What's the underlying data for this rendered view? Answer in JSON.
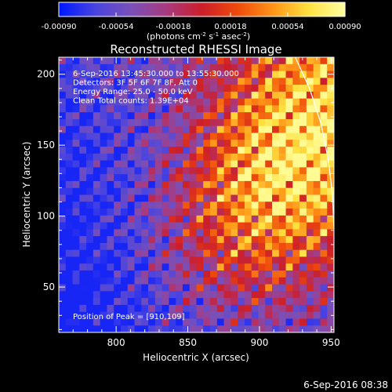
{
  "chart_data": {
    "type": "heatmap",
    "title": "Reconstructed RHESSI Image",
    "colorbar": {
      "ticks": [
        "-0.00090",
        "-0.00054",
        "-0.00018",
        "0.00018",
        "0.00054",
        "0.00090"
      ],
      "range": [
        -0.0009,
        0.0009
      ],
      "unit_parts": [
        "(photons cm",
        "-2",
        " s",
        "-1",
        " asec",
        "-2",
        ")"
      ]
    },
    "xlabel": "Heliocentric X (arcsec)",
    "ylabel": "Heliocentric Y (arcsec)",
    "xlim": [
      760,
      952
    ],
    "ylim": [
      18,
      212
    ],
    "xticks": [
      800,
      850,
      900,
      950
    ],
    "yticks": [
      50,
      100,
      150,
      200
    ],
    "annotations": [
      "6-Sep-2016 13:45:30.000 to 13:55:30.000",
      "Detectors: 3F 5F 6F 7F 8F, Att 0",
      "Energy Range: 25.0 - 50.0 keV",
      "Clean    Total counts: 1.39E+04"
    ],
    "peak_label": "Position of Peak = [910,109]",
    "peak": [
      910,
      109
    ],
    "limb": [
      [
        925,
        212
      ],
      [
        935,
        190
      ],
      [
        943,
        165
      ],
      [
        948,
        140
      ],
      [
        951,
        115
      ],
      [
        952,
        90
      ],
      [
        952,
        62
      ]
    ],
    "colors": {
      "colormap": [
        "#0018ff",
        "#4a44e0",
        "#7a50b8",
        "#a83a80",
        "#cc1e2a",
        "#ee4a0c",
        "#ff9418",
        "#ffe040",
        "#ffffa0"
      ]
    }
  },
  "footer_timestamp": "6-Sep-2016 08:38"
}
